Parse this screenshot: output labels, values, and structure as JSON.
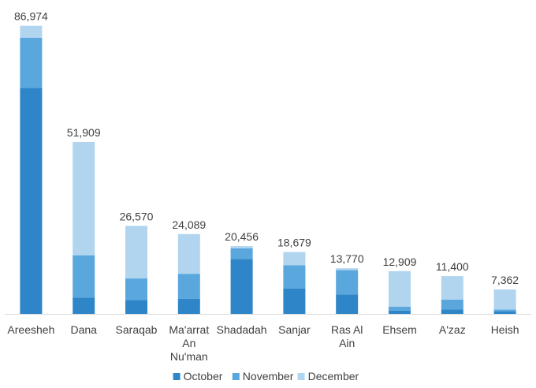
{
  "chart_data": {
    "type": "bar",
    "stacked": true,
    "title": "",
    "xlabel": "",
    "ylabel": "",
    "categories": [
      [
        "Areesheh"
      ],
      [
        "Dana"
      ],
      [
        "Saraqab"
      ],
      [
        "Ma'arrat",
        "An",
        "Nu'man"
      ],
      [
        "Shadadah"
      ],
      [
        "Sanjar"
      ],
      [
        "Ras Al",
        "Ain"
      ],
      [
        "Ehsem"
      ],
      [
        "A'zaz"
      ],
      [
        "Heish"
      ]
    ],
    "totals_labels": [
      "86,974",
      "51,909",
      "26,570",
      "24,089",
      "20,456",
      "18,679",
      "13,770",
      "12,909",
      "11,400",
      "7,362"
    ],
    "series": [
      {
        "name": "October",
        "color": "#2e86c8",
        "values": [
          68200,
          4900,
          4200,
          4600,
          16600,
          7700,
          5900,
          1000,
          1300,
          800
        ]
      },
      {
        "name": "November",
        "color": "#5aa7de",
        "values": [
          15200,
          12800,
          6500,
          7500,
          3200,
          7000,
          7300,
          1200,
          3000,
          500
        ]
      },
      {
        "name": "December",
        "color": "#b2d5ef",
        "values": [
          3574,
          34209,
          15870,
          11989,
          656,
          3979,
          570,
          10709,
          7100,
          6062
        ]
      }
    ],
    "ylim": [
      0,
      90000
    ],
    "grid": false,
    "legend_position": "bottom"
  }
}
